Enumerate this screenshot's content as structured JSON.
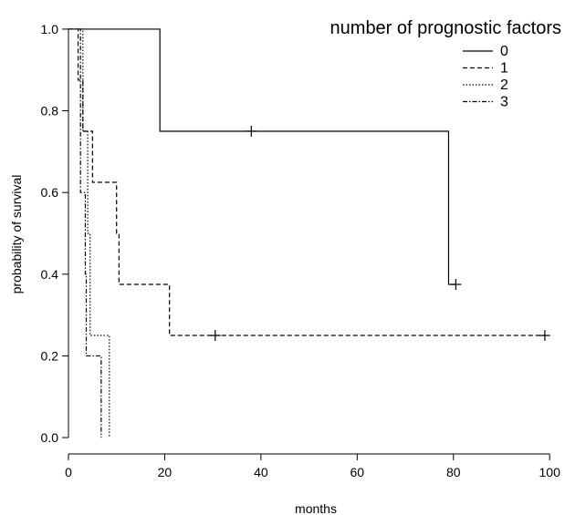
{
  "chart_data": {
    "type": "line",
    "subtype": "kaplan-meier step",
    "xlabel": "months",
    "ylabel": "probability of survival",
    "xlim": [
      0,
      103
    ],
    "ylim": [
      -0.04,
      1.04
    ],
    "xticks": [
      0,
      20,
      40,
      60,
      80,
      100
    ],
    "yticks": [
      0.0,
      0.2,
      0.4,
      0.6,
      0.8,
      1.0
    ],
    "grid": false,
    "legend": {
      "title": "number of prognostic factors",
      "placement": "top-right"
    },
    "series": [
      {
        "name": "0",
        "dash": "solid",
        "steps": [
          [
            0,
            1.0
          ],
          [
            19,
            0.75
          ],
          [
            79,
            0.375
          ]
        ],
        "end_x": 80.5,
        "censored": [
          [
            38,
            0.75
          ],
          [
            80.5,
            0.375
          ]
        ]
      },
      {
        "name": "1",
        "dash": "dashed",
        "steps": [
          [
            0,
            1.0
          ],
          [
            2,
            0.875
          ],
          [
            3,
            0.75
          ],
          [
            5,
            0.625
          ],
          [
            10,
            0.5
          ],
          [
            10.5,
            0.375
          ],
          [
            21,
            0.25
          ]
        ],
        "end_x": 99,
        "censored": [
          [
            30.5,
            0.25
          ],
          [
            99,
            0.25
          ]
        ]
      },
      {
        "name": "2",
        "dash": "dotted",
        "steps": [
          [
            0,
            1.0
          ],
          [
            3,
            0.75
          ],
          [
            4,
            0.5
          ],
          [
            4.5,
            0.25
          ],
          [
            8.5,
            0.0
          ]
        ],
        "end_x": 8.5,
        "censored": []
      },
      {
        "name": "3",
        "dash": "dotdash",
        "steps": [
          [
            0,
            1.0
          ],
          [
            2.5,
            0.6
          ],
          [
            3.5,
            0.4
          ],
          [
            3.7,
            0.2
          ],
          [
            6.8,
            0.0
          ]
        ],
        "end_x": 6.8,
        "censored": []
      }
    ]
  }
}
